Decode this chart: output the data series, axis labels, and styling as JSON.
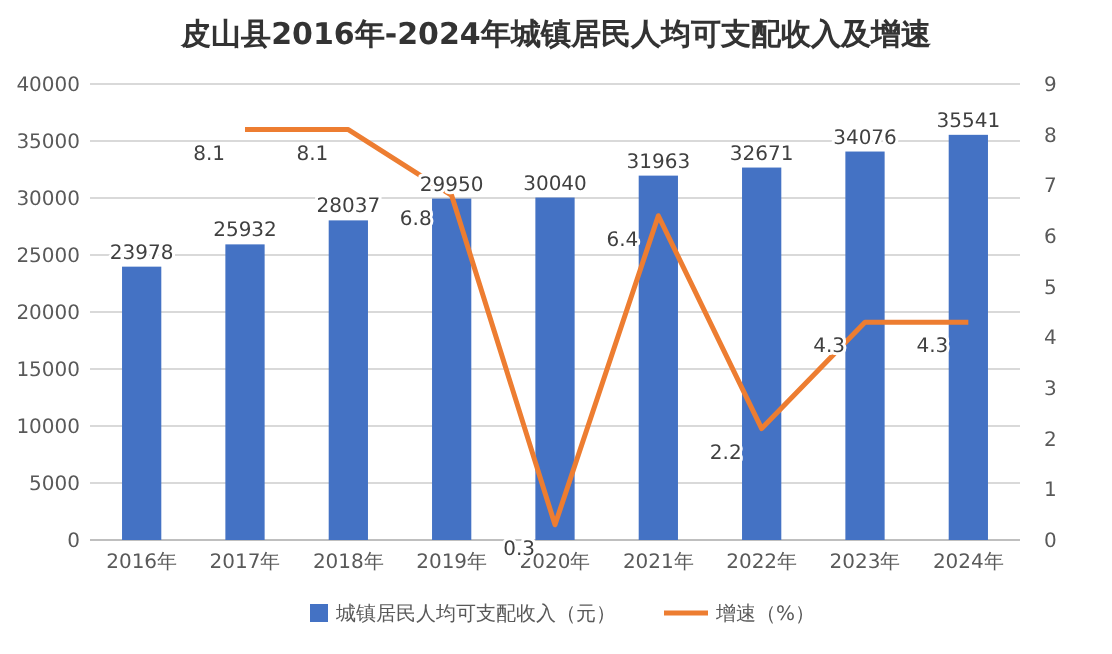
{
  "chart_data": {
    "type": "bar",
    "title": "皮山县2016年-2024年城镇居民人均可支配收入及增速",
    "categories": [
      "2016年",
      "2017年",
      "2018年",
      "2019年",
      "2020年",
      "2021年",
      "2022年",
      "2023年",
      "2024年"
    ],
    "series": [
      {
        "name": "城镇居民人均可支配收入（元）",
        "color": "#4472c4",
        "values": [
          23978,
          25932,
          28037,
          29950,
          30040,
          31963,
          32671,
          34076,
          35541
        ]
      },
      {
        "name": "增速（%）",
        "type": "line",
        "axis": "y2",
        "color": "#ed7d31",
        "values": [
          null,
          8.1,
          8.1,
          6.8,
          0.3,
          6.4,
          2.2,
          4.3,
          4.3
        ]
      }
    ],
    "ylim": [
      0,
      40000
    ],
    "yticks": [
      0,
      5000,
      10000,
      15000,
      20000,
      25000,
      30000,
      35000,
      40000
    ],
    "y2lim": [
      0,
      9
    ],
    "y2ticks": [
      0,
      1,
      2,
      3,
      4,
      5,
      6,
      7,
      8,
      9
    ],
    "grid": "y",
    "legend": "bottom",
    "data_labels": true
  }
}
